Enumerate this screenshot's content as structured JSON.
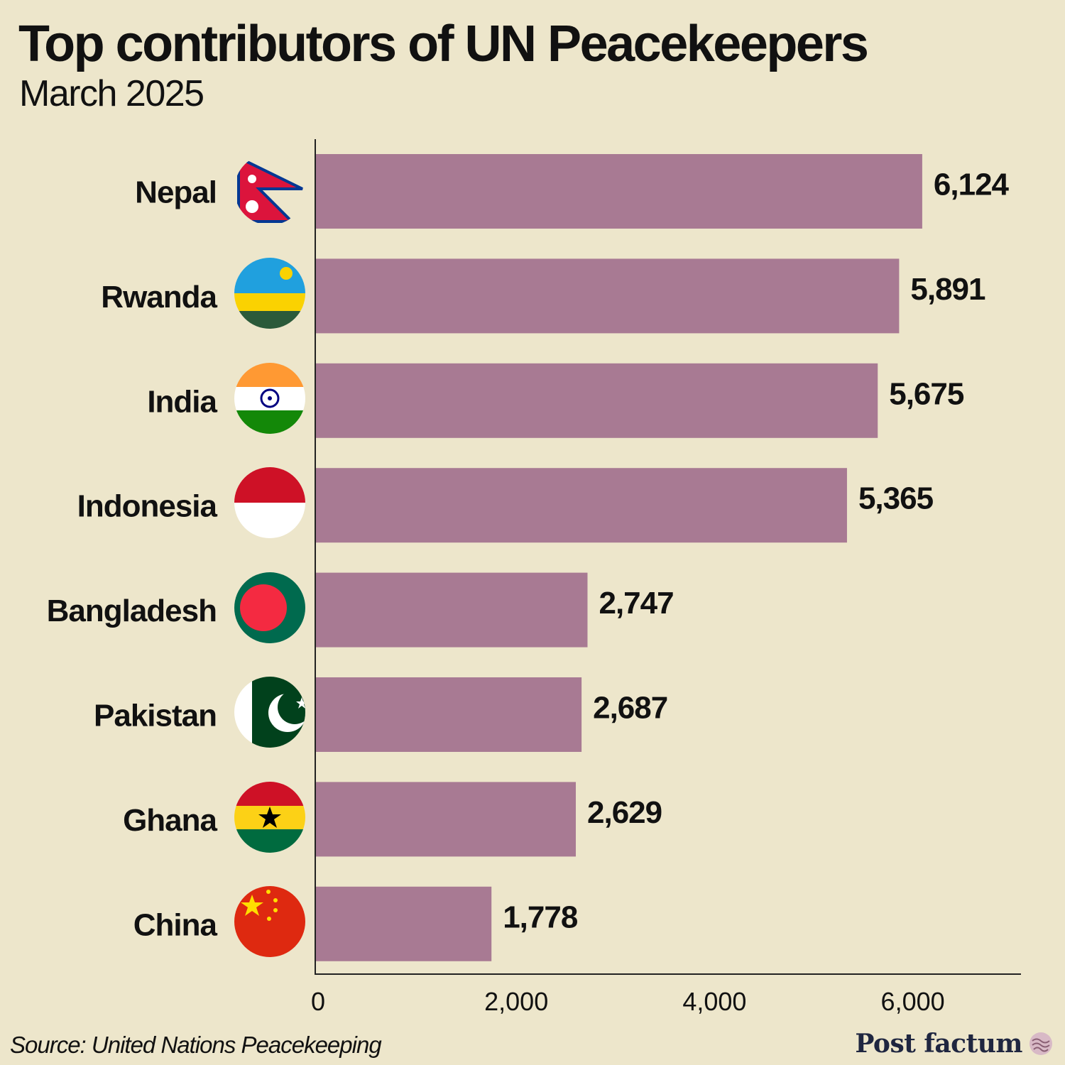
{
  "header": {
    "title": "Top contributors of UN Peacekeepers",
    "subtitle": "March 2025"
  },
  "footer": {
    "source": "Source: United Nations Peacekeeping",
    "brand": "Post factum"
  },
  "colors": {
    "background": "#ede6cb",
    "bar": "#a87a93",
    "axis": "#222222"
  },
  "chart_data": {
    "type": "bar",
    "orientation": "horizontal",
    "categories": [
      "Nepal",
      "Rwanda",
      "India",
      "Indonesia",
      "Bangladesh",
      "Pakistan",
      "Ghana",
      "China"
    ],
    "values": [
      6124,
      5891,
      5675,
      5365,
      2747,
      2687,
      2629,
      1778
    ],
    "value_labels": [
      "6,124",
      "5,891",
      "5,675",
      "5,365",
      "2,747",
      "2,687",
      "2,629",
      "1,778"
    ],
    "flags": [
      "nepal-flag-icon",
      "rwanda-flag-icon",
      "india-flag-icon",
      "indonesia-flag-icon",
      "bangladesh-flag-icon",
      "pakistan-flag-icon",
      "ghana-flag-icon",
      "china-flag-icon"
    ],
    "xlim": [
      0,
      7100
    ],
    "xticks": [
      0,
      2000,
      4000,
      6000
    ],
    "xtick_labels": [
      "0",
      "2,000",
      "4,000",
      "6,000"
    ],
    "grid": false
  }
}
